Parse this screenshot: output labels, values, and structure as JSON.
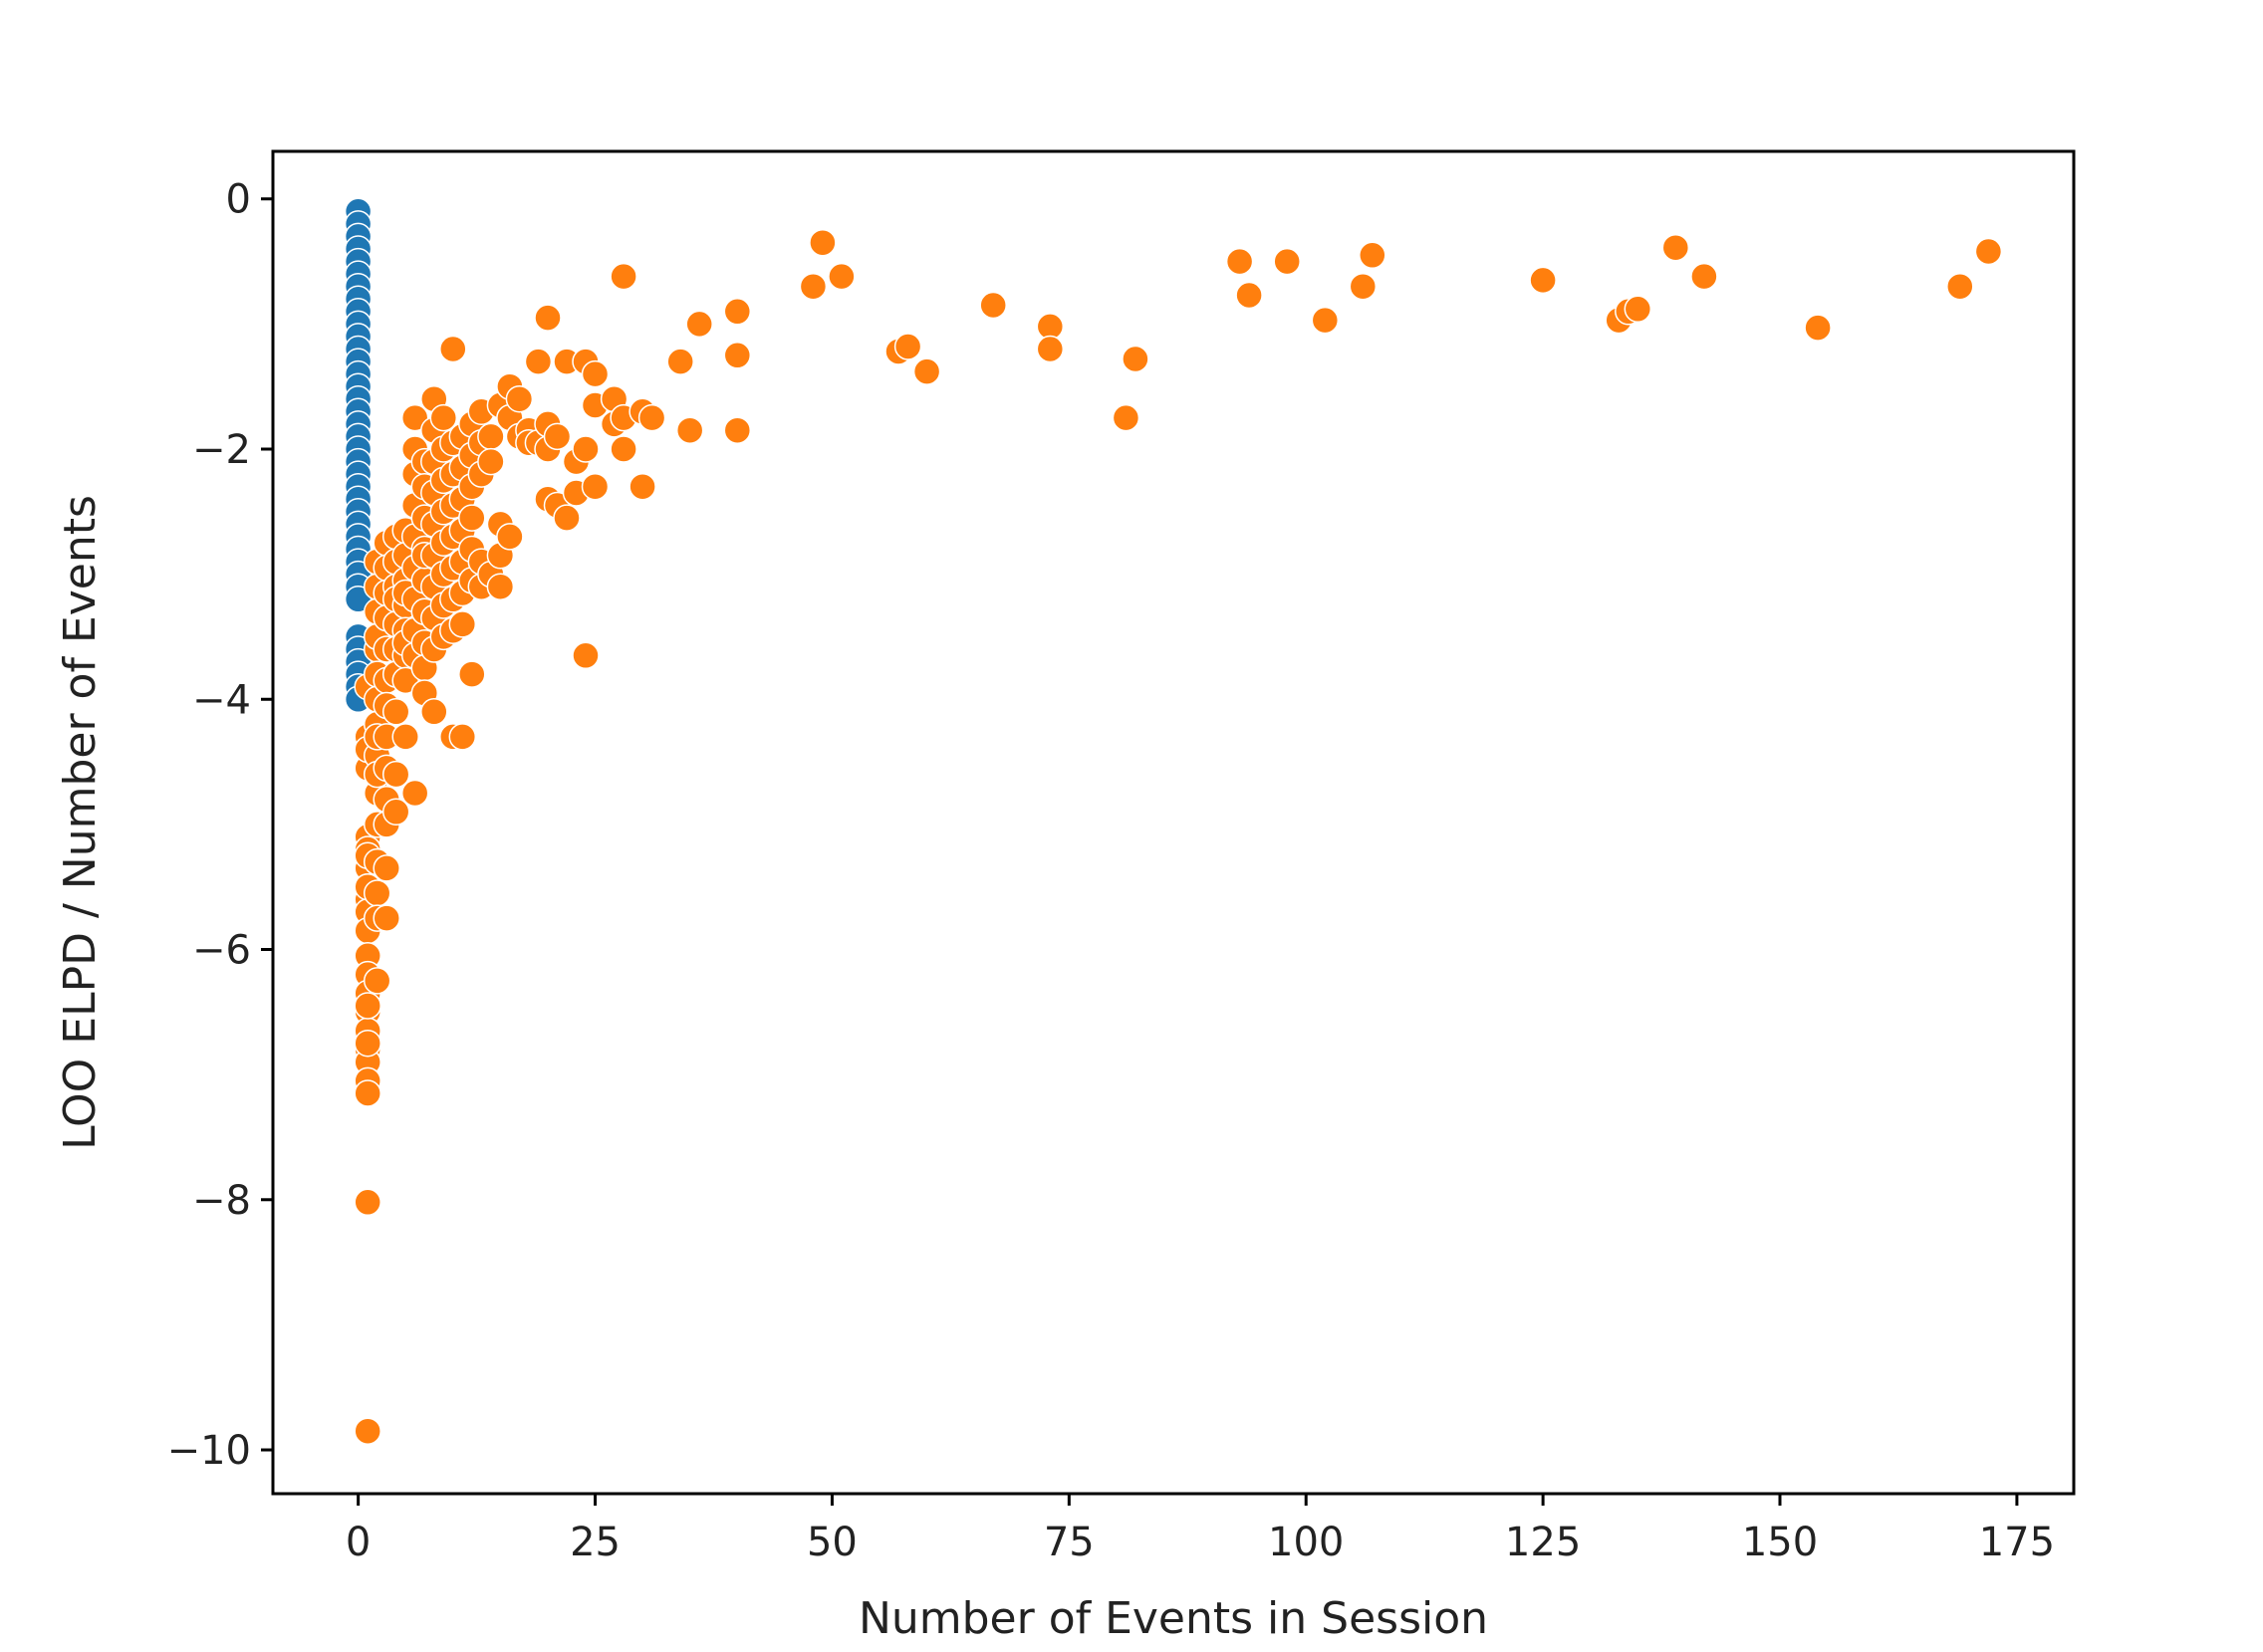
{
  "chart_data": {
    "type": "scatter",
    "title": "",
    "xlabel": "Number of Events in Session",
    "ylabel": "LOO ELPD / Number of Events",
    "xlim": [
      -9,
      181
    ],
    "ylim": [
      -10.35,
      0.38
    ],
    "xticks": [
      0,
      25,
      50,
      75,
      100,
      125,
      150,
      175
    ],
    "yticks": [
      0,
      -2,
      -4,
      -6,
      -8,
      -10
    ],
    "xtick_labels": [
      "0",
      "25",
      "50",
      "75",
      "100",
      "125",
      "150",
      "175"
    ],
    "ytick_labels": [
      "0",
      "−2",
      "−4",
      "−6",
      "−8",
      "−10"
    ],
    "grid": false,
    "legend": "none",
    "series": [
      {
        "color": "#1f77b4",
        "x": [
          0,
          0,
          0,
          0,
          0,
          0,
          0,
          0,
          0,
          0,
          0,
          0,
          0,
          0,
          0,
          0,
          0,
          0,
          0,
          0,
          0,
          0,
          0,
          0,
          0,
          0,
          0,
          0,
          0,
          0,
          0,
          0,
          0,
          0,
          0,
          0,
          0,
          0
        ],
        "y": [
          -0.1,
          -0.2,
          -0.3,
          -0.4,
          -0.5,
          -0.6,
          -0.7,
          -0.8,
          -0.9,
          -1.0,
          -1.1,
          -1.2,
          -1.3,
          -1.4,
          -1.5,
          -1.6,
          -1.7,
          -1.8,
          -1.9,
          -2.0,
          -2.1,
          -2.2,
          -2.3,
          -2.4,
          -2.5,
          -2.6,
          -2.7,
          -2.8,
          -2.9,
          -3.0,
          -3.1,
          -3.2,
          -3.5,
          -3.6,
          -3.7,
          -3.8,
          -3.9,
          -4.0
        ]
      },
      {
        "color": "#ff7f0e",
        "x": [
          1,
          1,
          1,
          1,
          1,
          1,
          1,
          1,
          1,
          1,
          1,
          1,
          1,
          1,
          1,
          1,
          1,
          1,
          1,
          1,
          1,
          1,
          1,
          1,
          1,
          1,
          2,
          2,
          2,
          2,
          2,
          2,
          2,
          2,
          2,
          2,
          2,
          2,
          2,
          2,
          2,
          2,
          2,
          3,
          3,
          3,
          3,
          3,
          3,
          3,
          3,
          3,
          3,
          3,
          3,
          3,
          4,
          4,
          4,
          4,
          4,
          4,
          4,
          4,
          4,
          4,
          5,
          5,
          5,
          5,
          5,
          5,
          5,
          5,
          5,
          5,
          6,
          6,
          6,
          6,
          6,
          6,
          6,
          6,
          6,
          6,
          7,
          7,
          7,
          7,
          7,
          7,
          7,
          7,
          7,
          7,
          7,
          8,
          8,
          8,
          8,
          8,
          8,
          8,
          8,
          8,
          8,
          9,
          9,
          9,
          9,
          9,
          9,
          9,
          9,
          10,
          10,
          10,
          10,
          10,
          10,
          10,
          10,
          10,
          11,
          11,
          11,
          11,
          11,
          11,
          11,
          11,
          12,
          12,
          12,
          12,
          12,
          12,
          12,
          13,
          13,
          13,
          13,
          13,
          14,
          14,
          14,
          15,
          15,
          15,
          15,
          16,
          16,
          16,
          17,
          17,
          18,
          18,
          19,
          19,
          20,
          20,
          20,
          20,
          21,
          21,
          22,
          22,
          23,
          23,
          24,
          24,
          24,
          25,
          25,
          25,
          27,
          27,
          28,
          28,
          28,
          30,
          30,
          31,
          34,
          35,
          36,
          40,
          40,
          40,
          48,
          49,
          51,
          57,
          58,
          60,
          67,
          73,
          73,
          81,
          82,
          93,
          94,
          98,
          102,
          106,
          107,
          125,
          133,
          134,
          135,
          139,
          142,
          154,
          169,
          172
        ],
        "y": [
          -3.9,
          -4.3,
          -4.55,
          -5.1,
          -5.2,
          -5.35,
          -5.5,
          -5.6,
          -5.7,
          -5.85,
          -6.05,
          -6.2,
          -6.35,
          -6.5,
          -6.65,
          -6.8,
          -6.9,
          -7.05,
          -7.15,
          -8.02,
          -9.85,
          -4.4,
          -5.25,
          -5.5,
          -6.45,
          -6.75,
          -2.9,
          -3.1,
          -3.6,
          -3.8,
          -4.0,
          -4.2,
          -4.45,
          -4.75,
          -5.0,
          -5.3,
          -5.55,
          -5.75,
          -6.25,
          -3.3,
          -3.5,
          -4.3,
          -4.6,
          -2.75,
          -2.95,
          -3.15,
          -3.35,
          -3.6,
          -3.85,
          -4.05,
          -4.3,
          -4.55,
          -4.8,
          -5.0,
          -5.35,
          -5.75,
          -2.7,
          -2.9,
          -3.1,
          -3.4,
          -3.6,
          -3.8,
          -4.1,
          -4.6,
          -4.9,
          -3.2,
          -2.65,
          -2.85,
          -3.05,
          -3.25,
          -3.45,
          -3.65,
          -3.85,
          -4.3,
          -3.55,
          -3.15,
          -1.75,
          -2.0,
          -2.2,
          -2.45,
          -2.7,
          -2.95,
          -3.2,
          -3.45,
          -3.65,
          -4.75,
          -2.1,
          -2.3,
          -2.55,
          -2.8,
          -3.05,
          -3.3,
          -3.55,
          -3.75,
          -3.95,
          -2.85,
          -3.3,
          -1.6,
          -1.85,
          -2.1,
          -2.35,
          -2.6,
          -2.85,
          -3.1,
          -3.35,
          -3.6,
          -4.1,
          -1.75,
          -2.0,
          -2.25,
          -2.5,
          -2.75,
          -3.0,
          -3.25,
          -3.5,
          -1.2,
          -1.95,
          -2.2,
          -2.45,
          -2.7,
          -2.95,
          -3.2,
          -3.45,
          -4.3,
          -1.9,
          -2.15,
          -2.4,
          -2.65,
          -2.9,
          -3.15,
          -3.4,
          -4.3,
          -1.8,
          -2.05,
          -2.3,
          -2.55,
          -2.8,
          -3.05,
          -3.8,
          -1.7,
          -1.95,
          -2.2,
          -2.9,
          -3.1,
          -1.9,
          -2.1,
          -3.0,
          -1.65,
          -2.6,
          -2.85,
          -3.1,
          -1.5,
          -1.75,
          -2.7,
          -1.6,
          -1.9,
          -1.85,
          -1.95,
          -1.3,
          -1.95,
          -0.95,
          -1.8,
          -2.0,
          -2.4,
          -1.9,
          -2.45,
          -1.3,
          -2.55,
          -2.1,
          -2.35,
          -1.3,
          -2.0,
          -3.65,
          -1.4,
          -1.65,
          -2.3,
          -1.6,
          -1.8,
          -0.62,
          -1.75,
          -2.0,
          -1.7,
          -2.3,
          -1.75,
          -1.3,
          -1.85,
          -1.0,
          -0.9,
          -1.25,
          -1.85,
          -0.7,
          -0.35,
          -0.62,
          -1.22,
          -1.18,
          -1.38,
          -0.85,
          -1.02,
          -1.2,
          -1.75,
          -1.28,
          -0.5,
          -0.77,
          -0.5,
          -0.97,
          -0.7,
          -0.45,
          -0.65,
          -0.97,
          -0.9,
          -0.88,
          -0.39,
          -0.62,
          -1.03,
          -0.7,
          -0.42
        ]
      }
    ]
  }
}
